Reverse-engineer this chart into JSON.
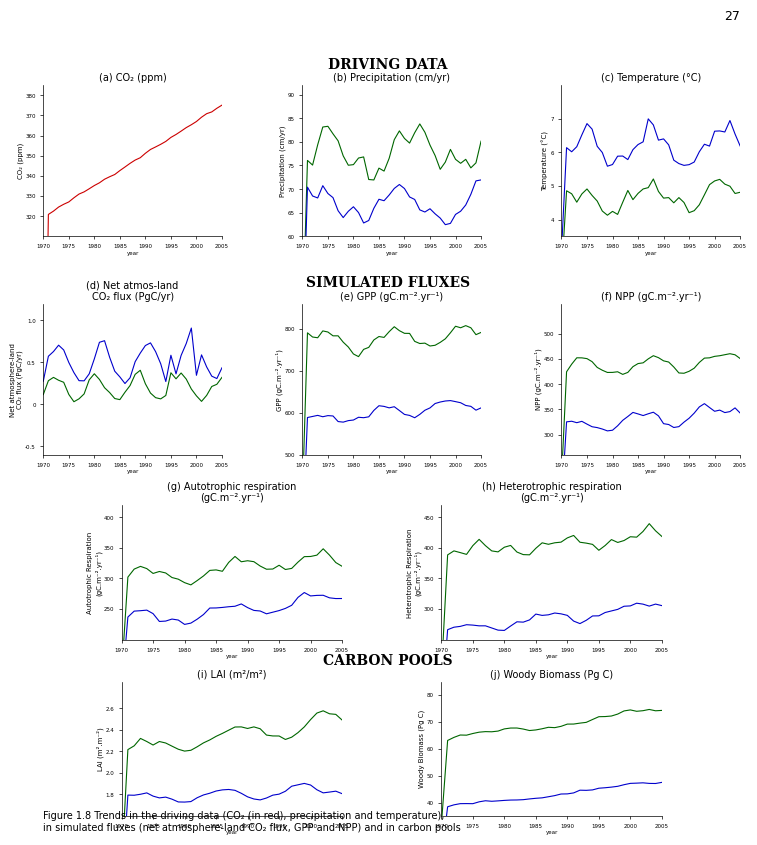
{
  "page_number": "27",
  "title_driving": "Driving Data",
  "title_simulated": "Simulated Fluxes",
  "title_carbon": "Carbon Pools",
  "subplot_titles": {
    "a": "(a) CO₂ (ppm)",
    "b": "(b) Precipitation (cm/yr)",
    "c": "(c) Temperature (°C)",
    "d": "(d) Net atmos-land\nCO₂ flux (PgC/yr)",
    "e": "(e) GPP (gC.m⁻².yr⁻¹)",
    "f": "(f) NPP (gC.m⁻².yr⁻¹)",
    "g": "(g) Autotrophic respiration\n(gC.m⁻².yr⁻¹)",
    "h": "(h) Heterotrophic respiration\n(gC.m⁻².yr⁻¹)",
    "i": "(i) LAI (m²/m²)",
    "j": "(j) Woody Biomass (Pg C)"
  },
  "ylabels": {
    "a": "CO₂ (ppm)",
    "b": "Precipitation (cm/yr)",
    "c": "Temperature (°C)",
    "d": "Net atmosphere-land\nCO₂ flux (PgC/yr)",
    "e": "GPP (gC.m⁻².yr⁻¹)",
    "f": "NPP (gC.m⁻².yr⁻¹)",
    "g": "Autotrophic Respiration\n(gC.m⁻².yr⁻¹)",
    "h": "Heterotrophic Respiration\n(gC.m⁻².yr⁻¹)",
    "i": "LAI (m².m⁻²)",
    "j": "Woody Biomass (Pg C)"
  },
  "xlabel": "year",
  "year_start": 1970,
  "year_end": 2005,
  "colors": {
    "red": "#cc0000",
    "green": "#006600",
    "blue": "#0000cc"
  },
  "caption_bold": "Figure 1.8",
  "caption_rest_1": " Trends in the driving data (CO₂ (in red), precipitation and temperature),",
  "caption_rest_2": "in simulated fluxes (net atmosphere-land CO₂ flux, GPP and NPP) and in carbon pools"
}
